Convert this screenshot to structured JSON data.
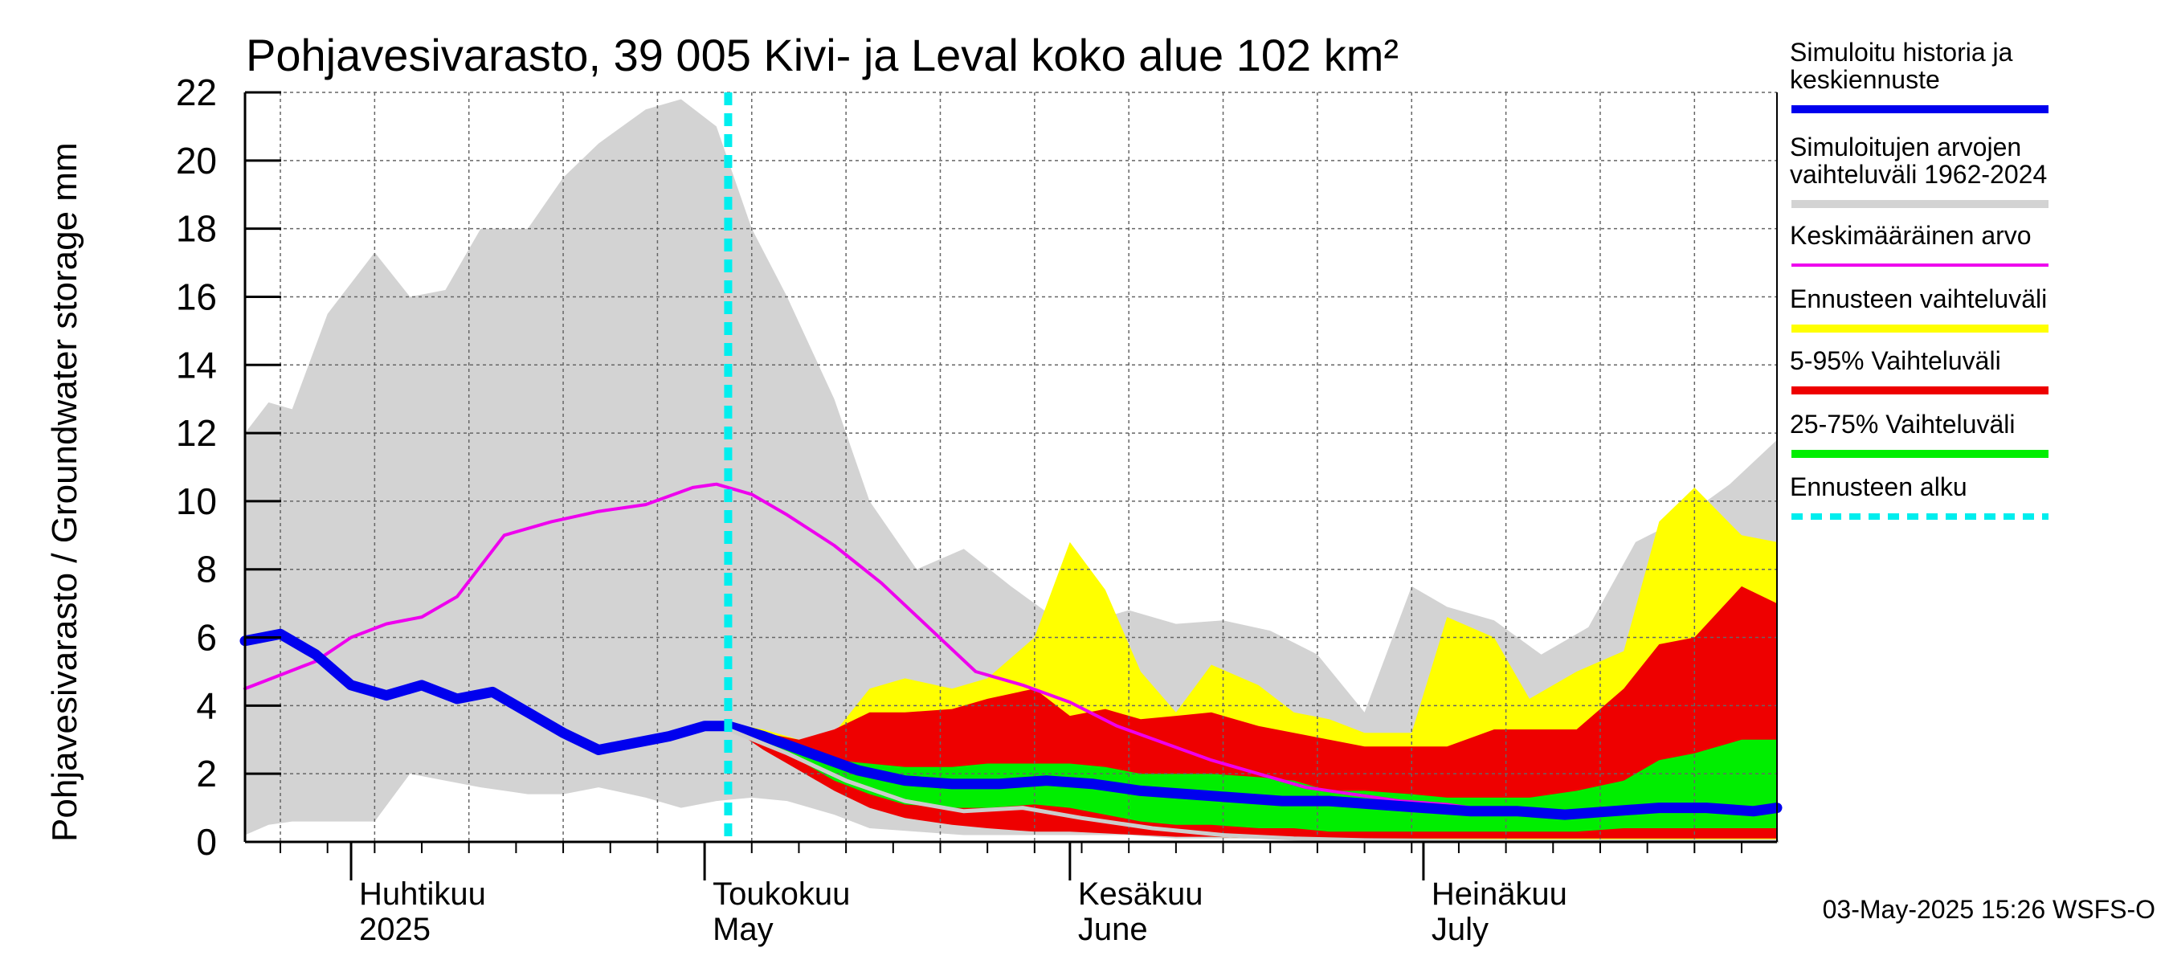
{
  "chart_data": {
    "type": "area",
    "title": "Pohjavesivarasto, 39 005 Kivi- ja Leval koko alue 102 km²",
    "ylabel": "Pohjavesivarasto / Groundwater storage   mm",
    "ylim": [
      0,
      22
    ],
    "yticks": [
      "0",
      "2",
      "4",
      "6",
      "8",
      "10",
      "12",
      "14",
      "16",
      "18",
      "20",
      "22"
    ],
    "xlim": [
      "2025-03-23",
      "2025-07-31"
    ],
    "grid": true,
    "months": [
      {
        "fi": "Huhtikuu",
        "en": "2025",
        "date": "2025-04-01"
      },
      {
        "fi": "Toukokuu",
        "en": "May",
        "date": "2025-05-01"
      },
      {
        "fi": "Kesäkuu",
        "en": "June",
        "date": "2025-06-01"
      },
      {
        "fi": "Heinäkuu",
        "en": "July",
        "date": "2025-07-01"
      }
    ],
    "forecast_start": "2025-05-03",
    "timestamp": "03-May-2025 15:26 WSFS-O",
    "legend": [
      {
        "label": "Simuloitu historia ja keskiennuste",
        "color": "#0000ee",
        "style": "thick"
      },
      {
        "label": "Simuloitujen arvojen vaihteluväli 1962-2024",
        "color": "#d3d3d3",
        "style": "thick"
      },
      {
        "label": "Keskimääräinen arvo",
        "color": "#ee00ee",
        "style": "thin"
      },
      {
        "label": "Ennusteen vaihteluväli",
        "color": "#ffff00",
        "style": "thick"
      },
      {
        "label": "5-95% Vaihteluväli",
        "color": "#ee0000",
        "style": "thick"
      },
      {
        "label": "25-75% Vaihteluväli",
        "color": "#00ee00",
        "style": "thick"
      },
      {
        "label": "Ennusteen alku",
        "color": "#00eeee",
        "style": "dashed"
      }
    ],
    "series": [
      {
        "name": "Simulaitujen arvojen vaihteluväli 1962-2024",
        "kind": "band",
        "color": "#d3d3d3",
        "x": [
          "2025-03-23",
          "2025-03-25",
          "2025-03-27",
          "2025-03-30",
          "2025-04-03",
          "2025-04-06",
          "2025-04-09",
          "2025-04-12",
          "2025-04-16",
          "2025-04-19",
          "2025-04-22",
          "2025-04-26",
          "2025-04-29",
          "2025-05-02",
          "2025-05-05",
          "2025-05-08",
          "2025-05-12",
          "2025-05-15",
          "2025-05-19",
          "2025-05-23",
          "2025-05-27",
          "2025-05-31",
          "2025-06-03",
          "2025-06-06",
          "2025-06-10",
          "2025-06-14",
          "2025-06-18",
          "2025-06-22",
          "2025-06-26",
          "2025-06-30",
          "2025-07-03",
          "2025-07-07",
          "2025-07-11",
          "2025-07-15",
          "2025-07-19",
          "2025-07-23",
          "2025-07-27",
          "2025-07-31"
        ],
        "low": [
          0.2,
          0.5,
          0.6,
          0.6,
          0.6,
          2.0,
          1.8,
          1.6,
          1.4,
          1.4,
          1.6,
          1.3,
          1.0,
          1.2,
          1.3,
          1.2,
          0.8,
          0.4,
          0.3,
          0.2,
          0.2,
          0.2,
          0.2,
          0.2,
          0.1,
          0.1,
          0.1,
          0.1,
          0.1,
          0.1,
          0.1,
          0.1,
          0.1,
          0.1,
          0.1,
          0.1,
          0.1,
          0.1
        ],
        "high": [
          12.0,
          12.9,
          12.7,
          15.5,
          17.3,
          16.0,
          16.2,
          18.0,
          18.0,
          19.5,
          20.5,
          21.5,
          21.8,
          21.0,
          18.0,
          16.0,
          13.0,
          10.0,
          8.0,
          8.6,
          7.5,
          6.5,
          6.5,
          6.8,
          6.4,
          6.5,
          6.2,
          5.5,
          3.8,
          7.5,
          6.9,
          6.5,
          5.5,
          6.3,
          8.8,
          9.5,
          10.5,
          11.8
        ]
      },
      {
        "name": "Ennusteen vaihteluväli",
        "kind": "band",
        "color": "#ffff00",
        "x": [
          "2025-05-03",
          "2025-05-06",
          "2025-05-09",
          "2025-05-12",
          "2025-05-15",
          "2025-05-18",
          "2025-05-22",
          "2025-05-25",
          "2025-05-29",
          "2025-06-01",
          "2025-06-04",
          "2025-06-07",
          "2025-06-10",
          "2025-06-13",
          "2025-06-17",
          "2025-06-20",
          "2025-06-23",
          "2025-06-26",
          "2025-06-30",
          "2025-07-03",
          "2025-07-07",
          "2025-07-10",
          "2025-07-14",
          "2025-07-18",
          "2025-07-21",
          "2025-07-24",
          "2025-07-28",
          "2025-07-31"
        ],
        "low": [
          3.4,
          2.8,
          2.2,
          1.6,
          1.1,
          0.7,
          0.6,
          0.5,
          0.4,
          0.35,
          0.3,
          0.25,
          0.2,
          0.15,
          0.1,
          0.08,
          0.06,
          0.05,
          0.05,
          0.04,
          0.04,
          0.03,
          0.03,
          0.03,
          0.03,
          0.02,
          0.02,
          0.02
        ],
        "high": [
          3.5,
          3.3,
          3.0,
          3.2,
          4.5,
          4.8,
          4.5,
          4.8,
          6.0,
          8.8,
          7.4,
          5.0,
          3.8,
          5.2,
          4.6,
          3.8,
          3.6,
          3.2,
          3.2,
          6.6,
          6.0,
          4.2,
          5.0,
          5.6,
          9.4,
          10.4,
          9.0,
          8.8
        ]
      },
      {
        "name": "5-95% Vaihteluväli",
        "kind": "band",
        "color": "#ee0000",
        "x": [
          "2025-05-03",
          "2025-05-06",
          "2025-05-09",
          "2025-05-12",
          "2025-05-15",
          "2025-05-18",
          "2025-05-22",
          "2025-05-25",
          "2025-05-29",
          "2025-06-01",
          "2025-06-04",
          "2025-06-07",
          "2025-06-10",
          "2025-06-13",
          "2025-06-17",
          "2025-06-20",
          "2025-06-23",
          "2025-06-26",
          "2025-06-30",
          "2025-07-03",
          "2025-07-07",
          "2025-07-10",
          "2025-07-14",
          "2025-07-18",
          "2025-07-21",
          "2025-07-24",
          "2025-07-28",
          "2025-07-31"
        ],
        "low": [
          3.4,
          2.7,
          2.1,
          1.5,
          1.0,
          0.7,
          0.5,
          0.4,
          0.3,
          0.3,
          0.25,
          0.2,
          0.15,
          0.15,
          0.1,
          0.1,
          0.1,
          0.1,
          0.1,
          0.1,
          0.1,
          0.1,
          0.1,
          0.1,
          0.1,
          0.1,
          0.1,
          0.1
        ],
        "high": [
          3.4,
          3.2,
          3.0,
          3.3,
          3.8,
          3.8,
          3.9,
          4.2,
          4.5,
          3.7,
          3.9,
          3.6,
          3.7,
          3.8,
          3.4,
          3.2,
          3.0,
          2.8,
          2.8,
          2.8,
          3.3,
          3.3,
          3.3,
          4.5,
          5.8,
          6.0,
          7.5,
          7.0
        ]
      },
      {
        "name": "25-75% Vaihteluväli",
        "kind": "band",
        "color": "#00ee00",
        "x": [
          "2025-05-03",
          "2025-05-06",
          "2025-05-09",
          "2025-05-12",
          "2025-05-15",
          "2025-05-18",
          "2025-05-22",
          "2025-05-25",
          "2025-05-29",
          "2025-06-01",
          "2025-06-04",
          "2025-06-07",
          "2025-06-10",
          "2025-06-13",
          "2025-06-17",
          "2025-06-20",
          "2025-06-23",
          "2025-06-26",
          "2025-06-30",
          "2025-07-03",
          "2025-07-07",
          "2025-07-10",
          "2025-07-14",
          "2025-07-18",
          "2025-07-21",
          "2025-07-24",
          "2025-07-28",
          "2025-07-31"
        ],
        "low": [
          3.4,
          2.9,
          2.4,
          1.8,
          1.4,
          1.1,
          1.0,
          1.0,
          1.1,
          1.0,
          0.8,
          0.6,
          0.5,
          0.5,
          0.4,
          0.4,
          0.3,
          0.3,
          0.3,
          0.3,
          0.3,
          0.3,
          0.3,
          0.4,
          0.4,
          0.4,
          0.4,
          0.4
        ],
        "high": [
          3.4,
          3.1,
          2.6,
          2.4,
          2.3,
          2.2,
          2.2,
          2.3,
          2.3,
          2.3,
          2.2,
          2.0,
          2.0,
          2.0,
          1.9,
          1.8,
          1.5,
          1.5,
          1.4,
          1.3,
          1.3,
          1.3,
          1.5,
          1.8,
          2.4,
          2.6,
          3.0,
          3.0
        ]
      },
      {
        "name": "Keskimääräinen arvo",
        "kind": "line",
        "color": "#ee00ee",
        "x": [
          "2025-03-23",
          "2025-03-26",
          "2025-03-29",
          "2025-04-01",
          "2025-04-04",
          "2025-04-07",
          "2025-04-10",
          "2025-04-14",
          "2025-04-18",
          "2025-04-22",
          "2025-04-26",
          "2025-04-30",
          "2025-05-02",
          "2025-05-05",
          "2025-05-08",
          "2025-05-12",
          "2025-05-16",
          "2025-05-20",
          "2025-05-24",
          "2025-05-28",
          "2025-06-01",
          "2025-06-05",
          "2025-06-09",
          "2025-06-13",
          "2025-06-17",
          "2025-06-21",
          "2025-06-25",
          "2025-06-29",
          "2025-07-03",
          "2025-07-07",
          "2025-07-11",
          "2025-07-15",
          "2025-07-19",
          "2025-07-23",
          "2025-07-27",
          "2025-07-31"
        ],
        "y": [
          4.5,
          4.9,
          5.3,
          6.0,
          6.4,
          6.6,
          7.2,
          9.0,
          9.4,
          9.7,
          9.9,
          10.4,
          10.5,
          10.2,
          9.6,
          8.7,
          7.6,
          6.3,
          5.0,
          4.6,
          4.1,
          3.4,
          2.9,
          2.4,
          2.0,
          1.6,
          1.4,
          1.2,
          1.1,
          0.9,
          0.8,
          0.8,
          0.9,
          1.0,
          1.0,
          0.9
        ]
      },
      {
        "name": "Simuloitu historia ja keskiennuste",
        "kind": "line",
        "color": "#0000ee",
        "x": [
          "2025-03-23",
          "2025-03-26",
          "2025-03-29",
          "2025-04-01",
          "2025-04-04",
          "2025-04-07",
          "2025-04-10",
          "2025-04-13",
          "2025-04-16",
          "2025-04-19",
          "2025-04-22",
          "2025-04-25",
          "2025-04-28",
          "2025-05-01",
          "2025-05-03",
          "2025-05-06",
          "2025-05-10",
          "2025-05-14",
          "2025-05-18",
          "2025-05-22",
          "2025-05-26",
          "2025-05-30",
          "2025-06-03",
          "2025-06-07",
          "2025-06-11",
          "2025-06-15",
          "2025-06-19",
          "2025-06-23",
          "2025-06-27",
          "2025-07-01",
          "2025-07-05",
          "2025-07-09",
          "2025-07-13",
          "2025-07-17",
          "2025-07-21",
          "2025-07-25",
          "2025-07-29",
          "2025-07-31"
        ],
        "y": [
          5.9,
          6.1,
          5.5,
          4.6,
          4.3,
          4.6,
          4.2,
          4.4,
          3.8,
          3.2,
          2.7,
          2.9,
          3.1,
          3.4,
          3.4,
          3.1,
          2.6,
          2.1,
          1.8,
          1.7,
          1.7,
          1.8,
          1.7,
          1.5,
          1.4,
          1.3,
          1.2,
          1.2,
          1.1,
          1.0,
          0.9,
          0.9,
          0.8,
          0.9,
          1.0,
          1.0,
          0.9,
          1.0
        ]
      },
      {
        "name": "min",
        "kind": "line",
        "color": "#cccccc",
        "x": [
          "2025-05-03",
          "2025-05-08",
          "2025-05-13",
          "2025-05-18",
          "2025-05-23",
          "2025-05-28",
          "2025-06-02",
          "2025-06-08",
          "2025-06-14",
          "2025-06-20",
          "2025-06-26",
          "2025-07-02",
          "2025-07-10",
          "2025-07-20",
          "2025-07-31"
        ],
        "y": [
          3.3,
          2.6,
          1.8,
          1.2,
          0.9,
          1.0,
          0.7,
          0.4,
          0.2,
          0.1,
          0.05,
          0.03,
          0.02,
          0.02,
          0.02
        ]
      }
    ]
  }
}
